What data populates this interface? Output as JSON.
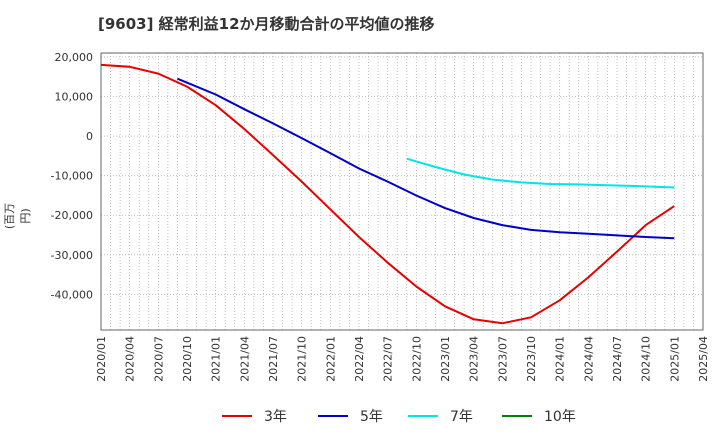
{
  "chart_data": {
    "type": "line",
    "title": "[9603]  経常利益12か月移動合計の平均値の推移",
    "ylabel": "(百万円)",
    "xlabel": "",
    "ylim": [
      -49000,
      21000
    ],
    "yticks": [
      20000,
      10000,
      0,
      -10000,
      -20000,
      -30000,
      -40000
    ],
    "ytick_labels": [
      "20,000",
      "10,000",
      "0",
      "-10,000",
      "-20,000",
      "-30,000",
      "-40,000"
    ],
    "xlim": [
      "2020-01",
      "2025-04"
    ],
    "xtick_labels": [
      "2020/01",
      "2020/04",
      "2020/07",
      "2020/10",
      "2021/01",
      "2021/04",
      "2021/07",
      "2021/10",
      "2022/01",
      "2022/04",
      "2022/07",
      "2022/10",
      "2023/01",
      "2023/04",
      "2023/07",
      "2023/10",
      "2024/01",
      "2024/04",
      "2024/07",
      "2024/10",
      "2025/01",
      "2025/04"
    ],
    "grid": true,
    "legend": "bottom",
    "series": [
      {
        "name": "3年",
        "color": "#e60000",
        "points": [
          [
            "2020-01",
            18000
          ],
          [
            "2020-04",
            17500
          ],
          [
            "2020-07",
            15800
          ],
          [
            "2020-10",
            12500
          ],
          [
            "2021-01",
            7800
          ],
          [
            "2021-04",
            1800
          ],
          [
            "2021-07",
            -4800
          ],
          [
            "2021-10",
            -11500
          ],
          [
            "2022-01",
            -18500
          ],
          [
            "2022-04",
            -25500
          ],
          [
            "2022-07",
            -32000
          ],
          [
            "2022-10",
            -38000
          ],
          [
            "2023-01",
            -43000
          ],
          [
            "2023-04",
            -46300
          ],
          [
            "2023-07",
            -47300
          ],
          [
            "2023-10",
            -45800
          ],
          [
            "2024-01",
            -41500
          ],
          [
            "2024-04",
            -35700
          ],
          [
            "2024-07",
            -29200
          ],
          [
            "2024-10",
            -22500
          ],
          [
            "2025-01",
            -17700
          ]
        ]
      },
      {
        "name": "5年",
        "color": "#0000c8",
        "points": [
          [
            "2020-09",
            14500
          ],
          [
            "2021-01",
            10500
          ],
          [
            "2021-04",
            6800
          ],
          [
            "2021-07",
            3200
          ],
          [
            "2021-10",
            -500
          ],
          [
            "2022-01",
            -4300
          ],
          [
            "2022-04",
            -8200
          ],
          [
            "2022-07",
            -11500
          ],
          [
            "2022-10",
            -15000
          ],
          [
            "2023-01",
            -18200
          ],
          [
            "2023-04",
            -20700
          ],
          [
            "2023-07",
            -22500
          ],
          [
            "2023-10",
            -23700
          ],
          [
            "2024-01",
            -24300
          ],
          [
            "2024-04",
            -24700
          ],
          [
            "2024-07",
            -25100
          ],
          [
            "2024-10",
            -25500
          ],
          [
            "2025-01",
            -25800
          ]
        ]
      },
      {
        "name": "7年",
        "color": "#00e5e5",
        "points": [
          [
            "2022-09",
            -5700
          ],
          [
            "2022-12",
            -7800
          ],
          [
            "2023-03",
            -9700
          ],
          [
            "2023-06",
            -11000
          ],
          [
            "2023-09",
            -11700
          ],
          [
            "2023-12",
            -12100
          ],
          [
            "2024-03",
            -12200
          ],
          [
            "2024-06",
            -12400
          ],
          [
            "2024-09",
            -12600
          ],
          [
            "2025-01",
            -13000
          ]
        ]
      },
      {
        "name": "10年",
        "color": "#008000",
        "points": []
      }
    ]
  }
}
